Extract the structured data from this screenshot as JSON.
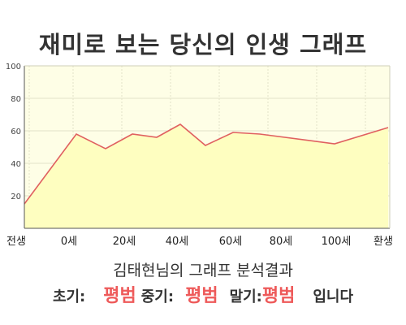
{
  "header": {
    "title": "재미로 보는 당신의 인생 그래프"
  },
  "chart_data": {
    "type": "area",
    "title": "재미로 보는 당신의 인생 그래프",
    "xlabel": "",
    "ylabel": "",
    "x_tick_labels": [
      "전생",
      "0세",
      "20세",
      "40세",
      "60세",
      "80세",
      "100세",
      "환생"
    ],
    "yticks": [
      20,
      40,
      60,
      80,
      100
    ],
    "ylim": [
      0,
      100
    ],
    "grid": true,
    "series": [
      {
        "values": [
          15,
          58,
          49,
          58,
          56,
          64,
          51,
          59,
          58,
          52,
          62
        ]
      }
    ],
    "colors": {
      "line": "#e06060",
      "fill": "#fefec0",
      "plot_bg": "#fefee6",
      "grid": "#e3e3c8"
    }
  },
  "summary": {
    "text": "김태현님의 그래프 분석결과"
  },
  "result": {
    "early_label": "초기:",
    "early_value": "평범",
    "mid_label": "중기:",
    "mid_value": "평범",
    "late_label": "말기:",
    "late_value": "평범",
    "suffix": "입니다"
  }
}
